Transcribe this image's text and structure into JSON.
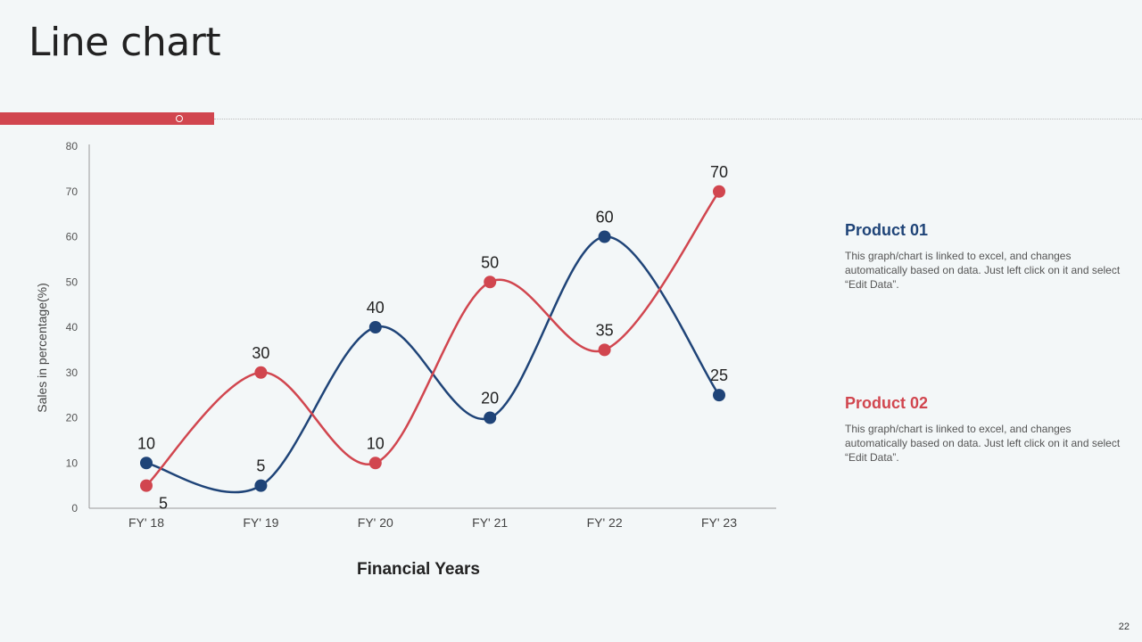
{
  "slide": {
    "title": "Line chart",
    "page_number": "22"
  },
  "colors": {
    "accent": "#d1464f",
    "product01": "#1f4478",
    "product02": "#d1464f"
  },
  "legend": [
    {
      "title": "Product 01",
      "description": "This graph/chart is linked to excel, and changes automatically based on data. Just left click on it and select “Edit Data”."
    },
    {
      "title": "Product 02",
      "description": "This graph/chart is linked to excel, and changes automatically based on data. Just left click on it and select “Edit Data”."
    }
  ],
  "chart_data": {
    "type": "line",
    "title": "",
    "xlabel": "Financial Years",
    "ylabel": "Sales in percentage(%)",
    "categories": [
      "FY' 18",
      "FY' 19",
      "FY' 20",
      "FY' 21",
      "FY' 22",
      "FY' 23"
    ],
    "ylim": [
      0,
      80
    ],
    "yticks": [
      0,
      10,
      20,
      30,
      40,
      50,
      60,
      70,
      80
    ],
    "smooth": true,
    "grid": false,
    "data_labels": true,
    "series": [
      {
        "name": "Product 01",
        "color": "#1f4478",
        "values": [
          10,
          5,
          40,
          20,
          60,
          25
        ]
      },
      {
        "name": "Product 02",
        "color": "#d1464f",
        "values": [
          5,
          30,
          10,
          50,
          35,
          70
        ]
      }
    ]
  }
}
